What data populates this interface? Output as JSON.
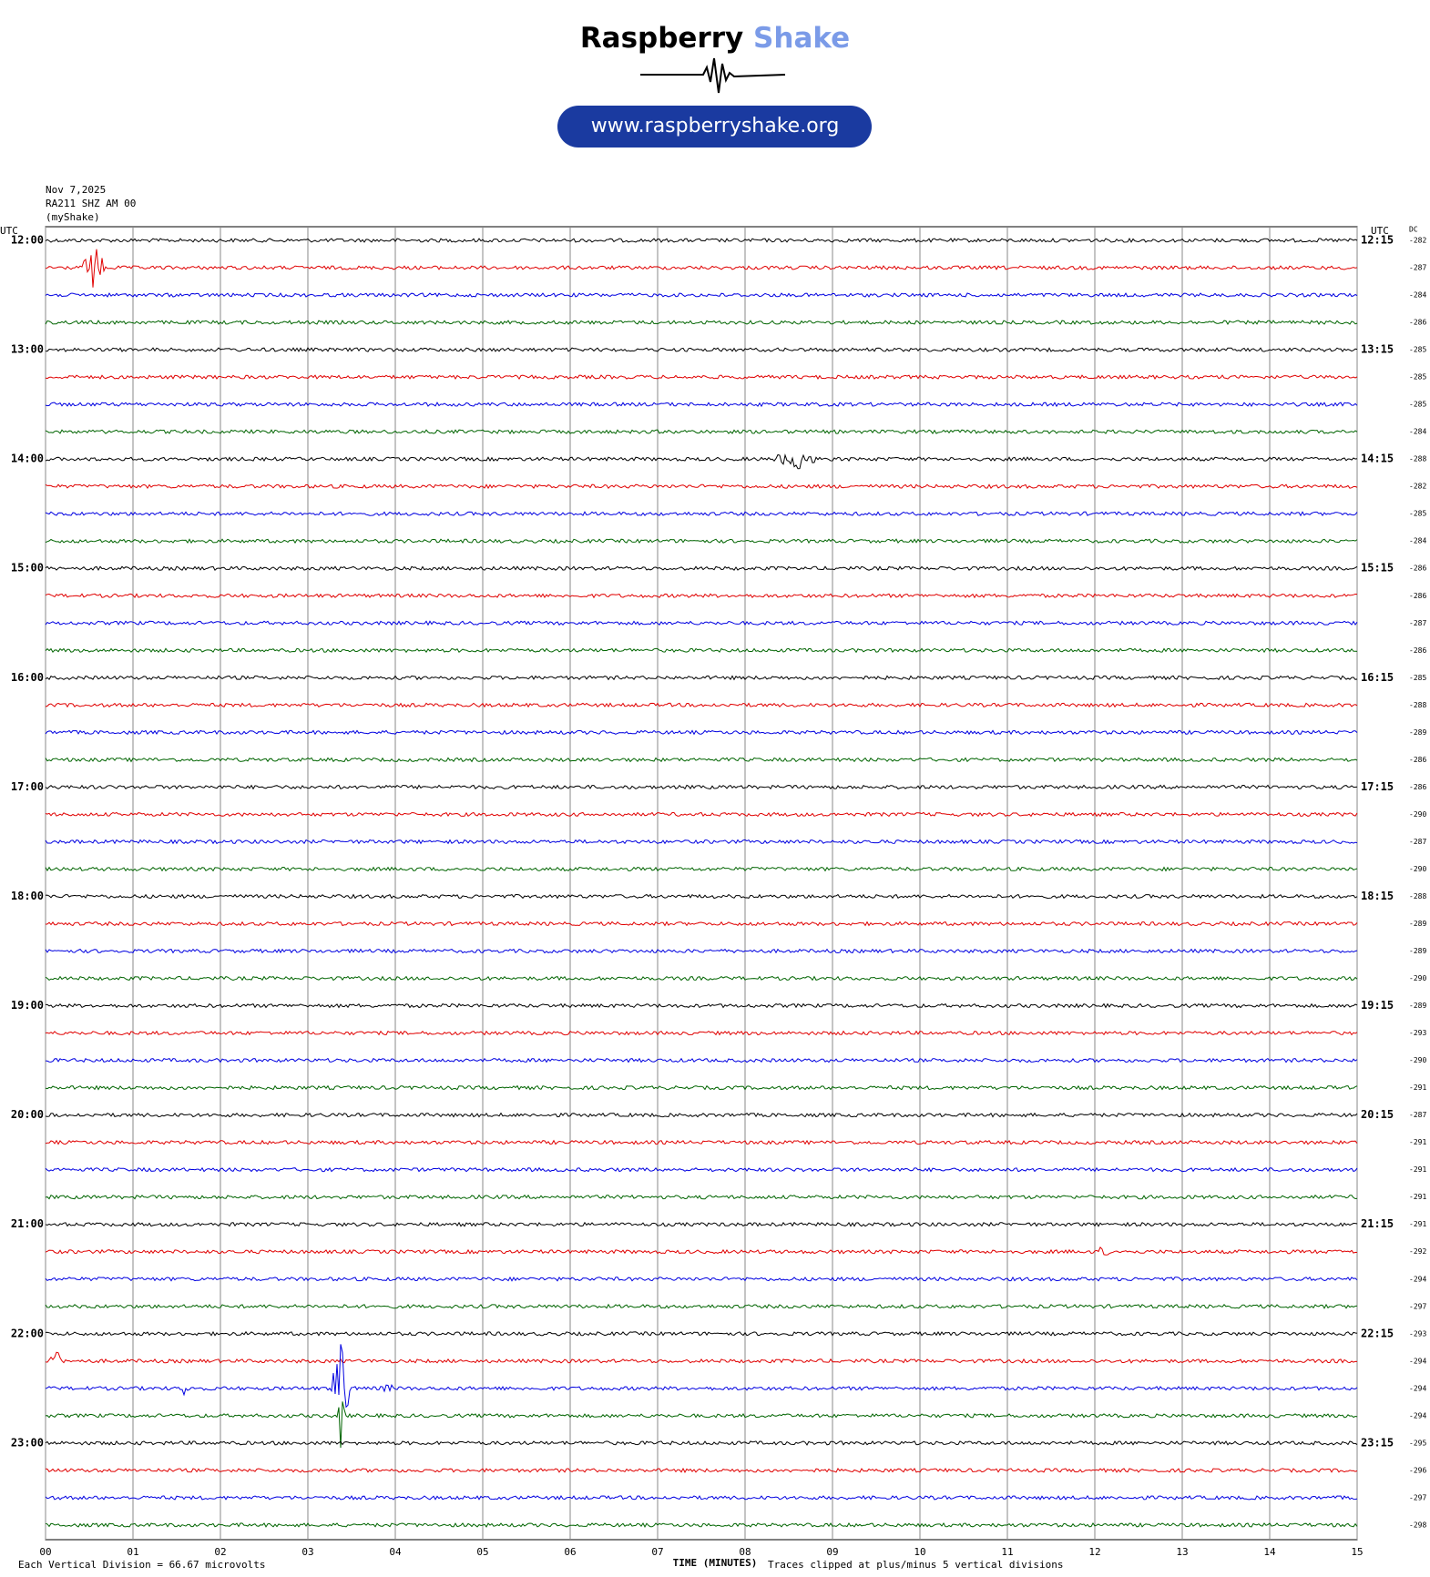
{
  "header": {
    "brand_main": "Raspberry",
    "brand_accent": "Shake",
    "url": "www.raspberryshake.org"
  },
  "chart_data": {
    "type": "helicorder",
    "date": "Nov 7,2025",
    "station": "RA211 SHZ AM 00",
    "source": "(myShake)",
    "left_axis_title": "UTC",
    "right_axis_title": "UTC",
    "dc_title": "DC",
    "row_labels_left": [
      "12:00",
      "13:00",
      "14:00",
      "15:00",
      "16:00",
      "17:00",
      "18:00",
      "19:00",
      "20:00",
      "21:00",
      "22:00",
      "23:00"
    ],
    "row_labels_right": [
      "12:15",
      "13:15",
      "14:15",
      "15:15",
      "16:15",
      "17:15",
      "18:15",
      "19:15",
      "20:15",
      "21:15",
      "22:15",
      "23:15"
    ],
    "dc_values": [
      -282,
      -287,
      -284,
      -286,
      -285,
      -285,
      -285,
      -284,
      -288,
      -282,
      -285,
      -284,
      -286,
      -286,
      -287,
      -286,
      -285,
      -288,
      -289,
      -286,
      -286,
      -290,
      -287,
      -290,
      -288,
      -289,
      -289,
      -290,
      -289,
      -293,
      -290,
      -291,
      -287,
      -291,
      -291,
      -291,
      -291,
      -292,
      -294,
      -297,
      -293,
      -294,
      -294,
      -294,
      -295,
      -296,
      -297,
      -298
    ],
    "colors": [
      "#000000",
      "#e00000",
      "#0000e0",
      "#006400"
    ],
    "xlim": [
      0,
      15
    ],
    "xticks": [
      {
        "value": 0,
        "label": "00"
      },
      {
        "value": 1,
        "label": "01"
      },
      {
        "value": 2,
        "label": "02"
      },
      {
        "value": 3,
        "label": "03"
      },
      {
        "value": 4,
        "label": "04"
      },
      {
        "value": 5,
        "label": "05"
      },
      {
        "value": 6,
        "label": "06"
      },
      {
        "value": 7,
        "label": "07"
      },
      {
        "value": 8,
        "label": "08"
      },
      {
        "value": 9,
        "label": "09"
      },
      {
        "value": 10,
        "label": "10"
      },
      {
        "value": 11,
        "label": "11"
      },
      {
        "value": 12,
        "label": "12"
      },
      {
        "value": 13,
        "label": "13"
      },
      {
        "value": 14,
        "label": "14"
      },
      {
        "value": 15,
        "label": "15"
      }
    ],
    "xlabel": "TIME (MINUTES)",
    "scale_note": "Each Vertical Division =   66.67 microvolts",
    "clip_note": "Traces clipped at plus/minus 5 vertical divisions",
    "grid": true
  }
}
